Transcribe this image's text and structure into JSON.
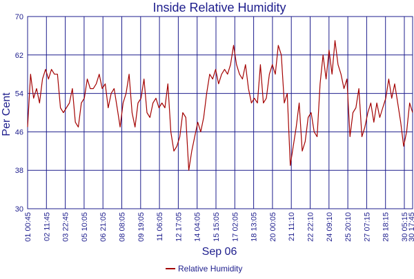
{
  "chart_data": {
    "type": "line",
    "title": "Inside Relative Humidity",
    "xlabel": "Sep 06",
    "ylabel": "Per Cent",
    "ylim": [
      30,
      70
    ],
    "y_ticks": [
      "70",
      "62",
      "54",
      "46",
      "38",
      "30"
    ],
    "x_tick_labels": [
      "01 00:45",
      "02 11:45",
      "03 22:45",
      "05 10:05",
      "06 21:05",
      "08 08:05",
      "09 19:05",
      "11 06:05",
      "12 17:05",
      "14 04:05",
      "15 15:05",
      "17 02:05",
      "18 13:05",
      "20 00:05",
      "21 11:10",
      "22 22:10",
      "24 09:10",
      "25 20:10",
      "27 07:15",
      "28 18:15",
      "30 05:15",
      "30 17:45"
    ],
    "grid": true,
    "legend_position": "bottom-center",
    "colors": {
      "series": "#a30000",
      "grid": "#1c1c8c",
      "text": "#1c1c8c"
    },
    "series": [
      {
        "name": "Relative Humidity",
        "values": [
          47,
          58,
          53,
          55,
          52,
          57,
          59,
          57,
          59,
          58,
          58,
          51,
          50,
          51,
          52,
          55,
          48,
          47,
          52,
          53,
          57,
          55,
          55,
          56,
          58,
          55,
          56,
          51,
          54,
          55,
          51,
          47,
          52,
          54,
          58,
          50,
          47,
          52,
          53,
          57,
          50,
          49,
          52,
          53,
          51,
          52,
          51,
          56,
          46,
          42,
          43,
          45,
          50,
          49,
          38,
          42,
          45,
          48,
          46,
          49,
          54,
          58,
          57,
          59,
          56,
          58,
          59,
          58,
          60,
          64,
          60,
          58,
          57,
          60,
          55,
          52,
          53,
          52,
          60,
          52,
          53,
          58,
          60,
          58,
          64,
          62,
          52,
          54,
          39,
          43,
          47,
          52,
          42,
          44,
          49,
          50,
          46,
          45,
          56,
          62,
          57,
          63,
          58,
          65,
          60,
          58,
          55,
          57,
          45,
          50,
          51,
          55,
          45,
          47,
          50,
          52,
          48,
          52,
          49,
          51,
          53,
          57,
          53,
          56,
          52,
          48,
          43,
          46,
          52,
          50
        ]
      }
    ]
  }
}
